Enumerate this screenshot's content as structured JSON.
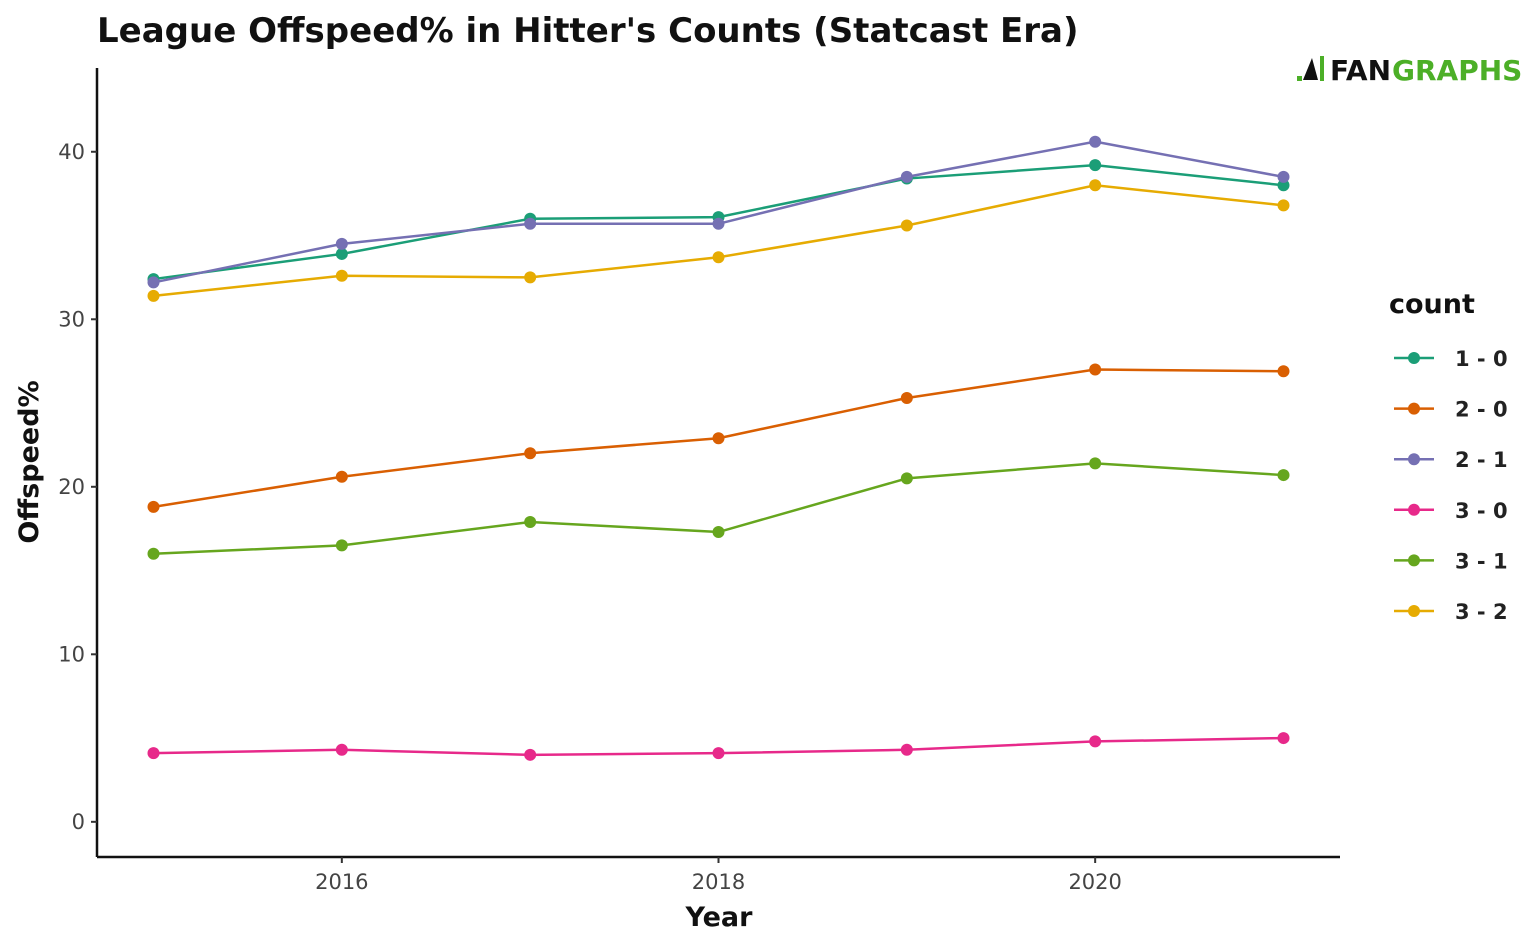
{
  "chart_data": {
    "type": "line",
    "title": "League Offspeed% in Hitter's Counts (Statcast Era)",
    "xlabel": "Year",
    "ylabel": "Offspeed%",
    "x": [
      2015,
      2016,
      2017,
      2018,
      2019,
      2020,
      2021
    ],
    "xlim": [
      2014.7,
      2021.3
    ],
    "ylim": [
      -2.1,
      45
    ],
    "xticks": [
      2016,
      2018,
      2020
    ],
    "yticks": [
      0,
      10,
      20,
      30,
      40
    ],
    "grid": false,
    "legend": {
      "title": "count",
      "placement": "right"
    },
    "series": [
      {
        "name": "1 - 0",
        "color": "#1b9e77",
        "values": [
          32.4,
          33.9,
          36.0,
          36.1,
          38.4,
          39.2,
          38.0
        ]
      },
      {
        "name": "2 - 0",
        "color": "#d95f02",
        "values": [
          18.8,
          20.6,
          22.0,
          22.9,
          25.3,
          27.0,
          26.9
        ]
      },
      {
        "name": "2 - 1",
        "color": "#7570b3",
        "values": [
          32.2,
          34.5,
          35.7,
          35.7,
          38.5,
          40.6,
          38.5
        ]
      },
      {
        "name": "3 - 0",
        "color": "#e7298a",
        "values": [
          4.1,
          4.3,
          4.0,
          4.1,
          4.3,
          4.8,
          5.0
        ]
      },
      {
        "name": "3 - 1",
        "color": "#66a61e",
        "values": [
          16.0,
          16.5,
          17.9,
          17.3,
          20.5,
          21.4,
          20.7
        ]
      },
      {
        "name": "3 - 2",
        "color": "#e6ab02",
        "values": [
          31.4,
          32.6,
          32.5,
          33.7,
          35.6,
          38.0,
          36.8
        ]
      }
    ]
  },
  "logo": {
    "prefix": "FAN",
    "suffix": "GRAPHS"
  }
}
